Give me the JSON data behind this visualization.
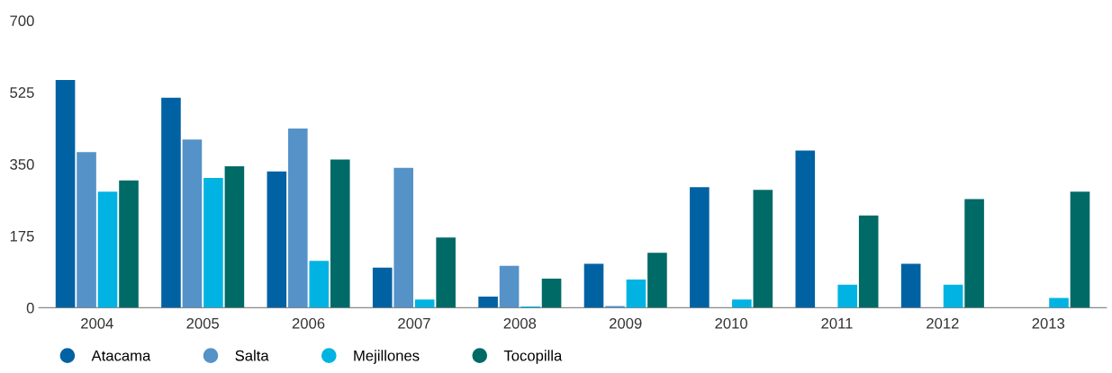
{
  "chart_data": {
    "type": "bar",
    "categories": [
      "2004",
      "2005",
      "2006",
      "2007",
      "2008",
      "2009",
      "2010",
      "2011",
      "2012",
      "2013"
    ],
    "series": [
      {
        "name": "Atacama",
        "color": "#0062a3",
        "values": [
          555,
          512,
          332,
          98,
          27,
          107,
          294,
          383,
          107,
          null
        ]
      },
      {
        "name": "Salta",
        "color": "#5592c8",
        "values": [
          379,
          410,
          437,
          341,
          102,
          4,
          null,
          null,
          null,
          null
        ]
      },
      {
        "name": "Mejillones",
        "color": "#00b3e3",
        "values": [
          283,
          316,
          114,
          20,
          3,
          69,
          20,
          56,
          56,
          24
        ]
      },
      {
        "name": "Tocopilla",
        "color": "#006a67",
        "values": [
          310,
          345,
          361,
          171,
          71,
          134,
          287,
          225,
          265,
          283
        ]
      }
    ],
    "ylim": [
      0,
      700
    ],
    "yticks": [
      0,
      175,
      350,
      525,
      700
    ],
    "grid": false,
    "legend": "bottom left"
  }
}
